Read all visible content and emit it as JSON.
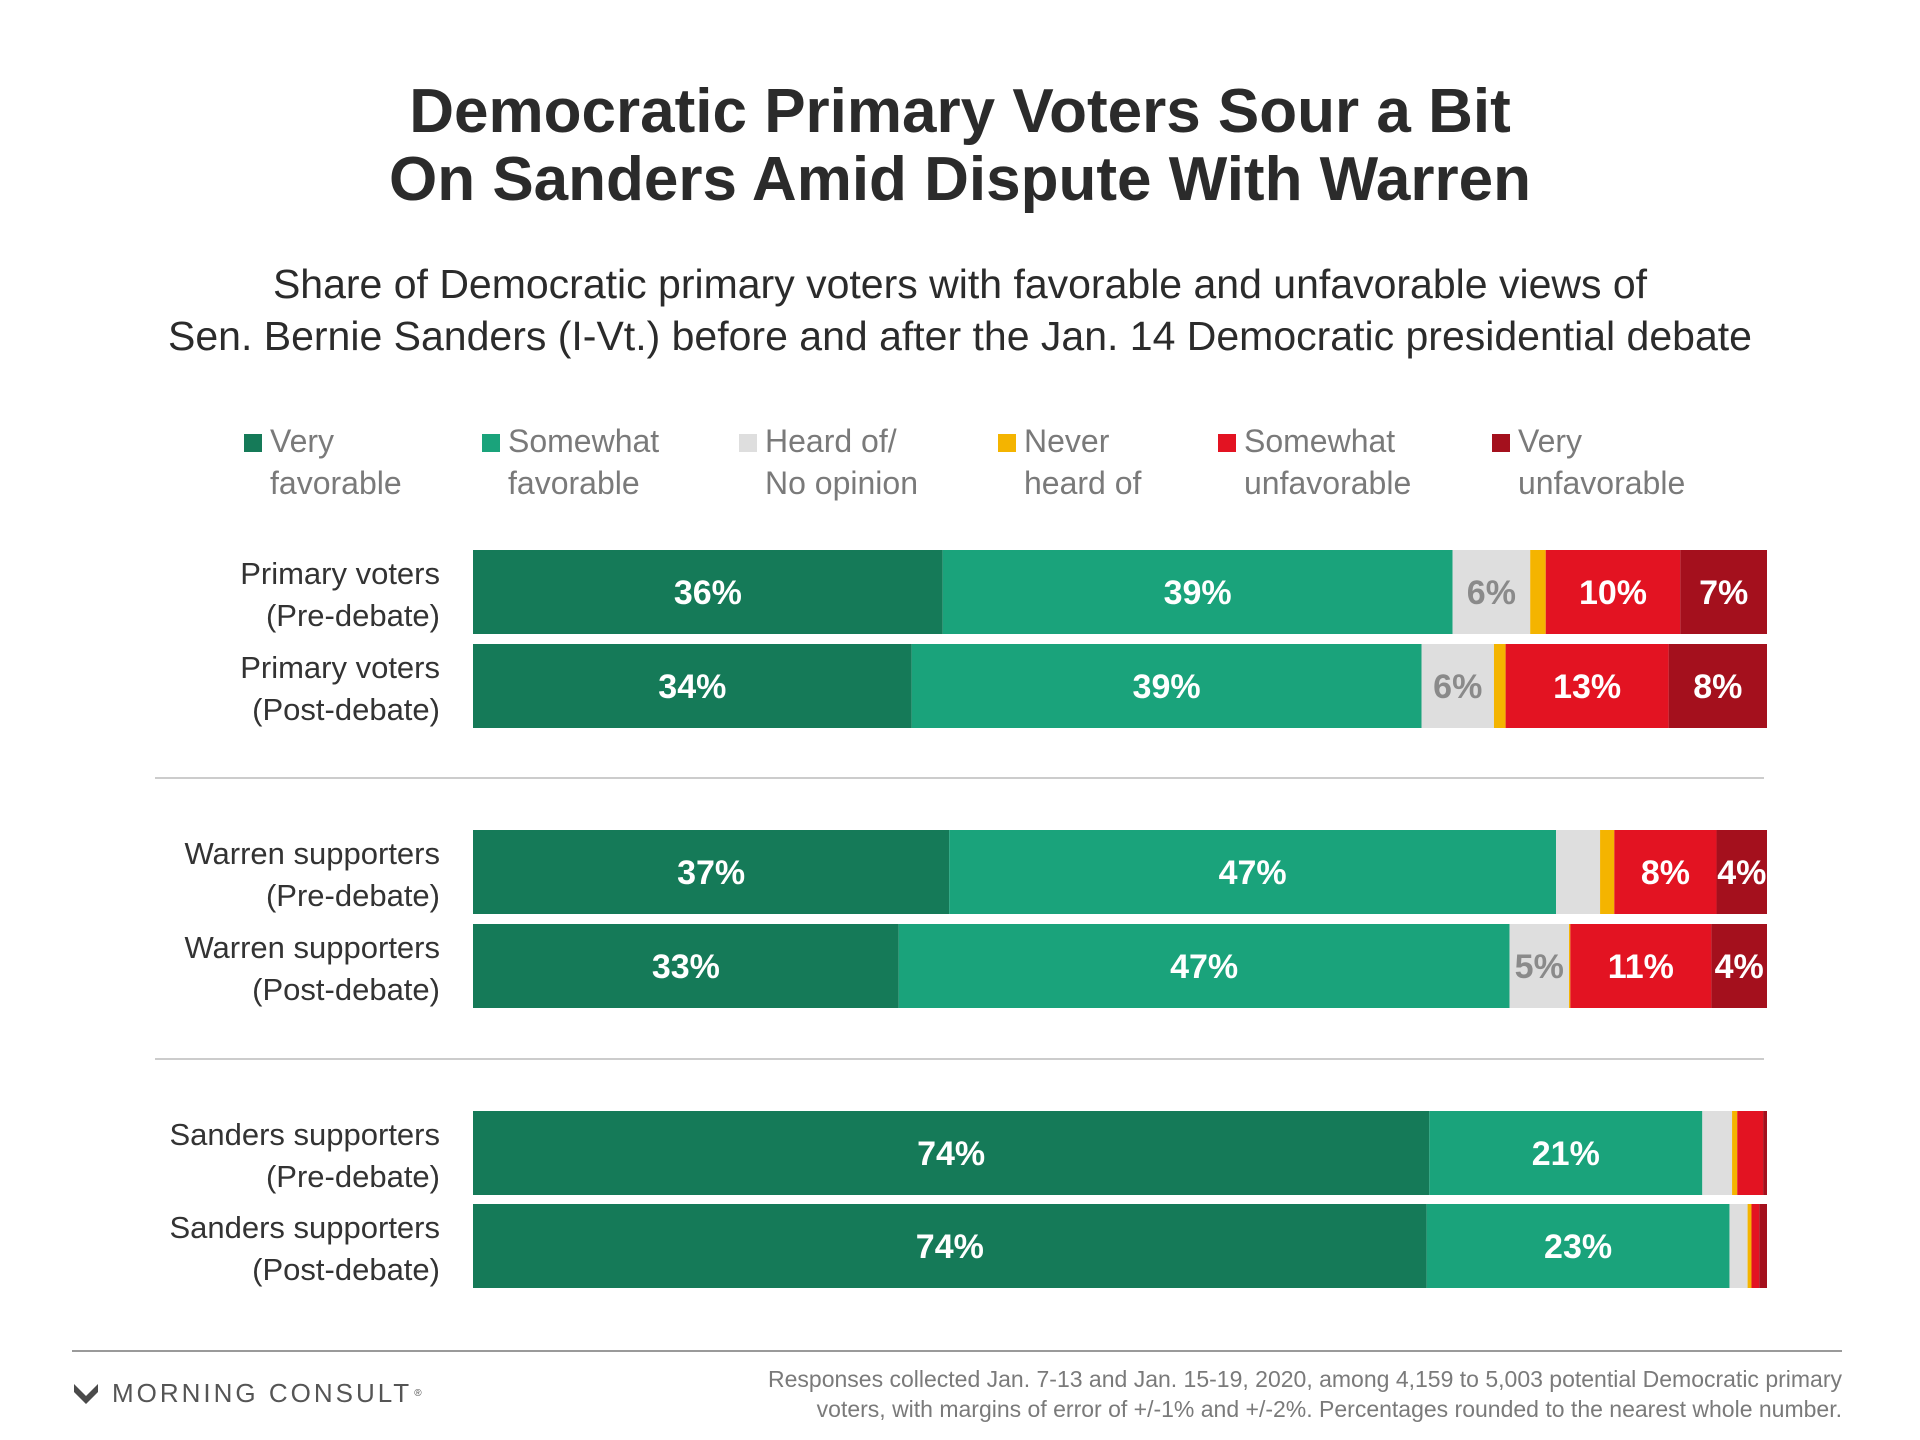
{
  "title": [
    "Democratic Primary Voters Sour a Bit",
    "On Sanders Amid Dispute With Warren"
  ],
  "subtitle": [
    "Share of Democratic primary voters with favorable and unfavorable views of",
    "Sen. Bernie Sanders (I-Vt.) before and after the Jan. 14 Democratic presidential debate"
  ],
  "legend": [
    {
      "lines": [
        "Very",
        "favorable"
      ],
      "color": "#157a58"
    },
    {
      "lines": [
        "Somewhat",
        "favorable"
      ],
      "color": "#1aa37b"
    },
    {
      "lines": [
        "Heard of/",
        "No opinion"
      ],
      "color": "#dedede"
    },
    {
      "lines": [
        "Never",
        "heard of"
      ],
      "color": "#f4b400"
    },
    {
      "lines": [
        "Somewhat",
        "unfavorable"
      ],
      "color": "#e31322"
    },
    {
      "lines": [
        "Very",
        "unfavorable"
      ],
      "color": "#a4101d"
    }
  ],
  "chart_data": {
    "type": "bar",
    "orientation": "horizontal",
    "stacked": true,
    "unit": "%",
    "categories": [
      [
        "Primary voters",
        "(Pre-debate)"
      ],
      [
        "Primary voters",
        "(Post-debate)"
      ],
      [
        "Warren supporters",
        "(Pre-debate)"
      ],
      [
        "Warren supporters",
        "(Post-debate)"
      ],
      [
        "Sanders supporters",
        "(Pre-debate)"
      ],
      [
        "Sanders supporters",
        "(Post-debate)"
      ]
    ],
    "groups": [
      [
        0,
        1
      ],
      [
        2,
        3
      ],
      [
        4,
        5
      ]
    ],
    "series": [
      {
        "name": "Very favorable",
        "color": "#157a58",
        "label_color": "#ffffff",
        "values": [
          36.3,
          33.9,
          36.8,
          32.9,
          73.9,
          73.7
        ],
        "labels": [
          "36%",
          "34%",
          "37%",
          "33%",
          "74%",
          "74%"
        ]
      },
      {
        "name": "Somewhat favorable",
        "color": "#1aa37b",
        "label_color": "#ffffff",
        "values": [
          39.4,
          39.4,
          46.9,
          47.2,
          21.1,
          23.4
        ],
        "labels": [
          "39%",
          "39%",
          "47%",
          "47%",
          "21%",
          "23%"
        ]
      },
      {
        "name": "Heard of/No opinion",
        "color": "#dedede",
        "label_color": "#8a8a8a",
        "values": [
          6.0,
          5.6,
          3.4,
          4.6,
          2.3,
          1.4
        ],
        "labels": [
          "6%",
          "6%",
          "",
          "5%",
          "",
          ""
        ]
      },
      {
        "name": "Never heard of",
        "color": "#f4b400",
        "label_color": "#ffffff",
        "values": [
          1.2,
          0.9,
          1.1,
          0.1,
          0.4,
          0.3
        ],
        "labels": [
          "",
          "",
          "",
          "",
          "",
          ""
        ]
      },
      {
        "name": "Somewhat unfavorable",
        "color": "#e31322",
        "label_color": "#ffffff",
        "values": [
          10.4,
          12.6,
          7.9,
          10.9,
          2.0,
          0.6
        ],
        "labels": [
          "10%",
          "13%",
          "8%",
          "11%",
          "",
          ""
        ]
      },
      {
        "name": "Very unfavorable",
        "color": "#a4101d",
        "label_color": "#ffffff",
        "values": [
          6.7,
          7.6,
          3.9,
          4.3,
          0.3,
          0.6
        ],
        "labels": [
          "7%",
          "8%",
          "4%",
          "4%",
          "",
          ""
        ]
      }
    ],
    "xlim": [
      0,
      100
    ],
    "grid": false,
    "legend_position": "top"
  },
  "footer": {
    "logo_text": "MORNING CONSULT",
    "logo_tm": "®",
    "note": [
      "Responses collected Jan. 7-13 and Jan. 15-19, 2020, among 4,159 to 5,003 potential Democratic primary",
      "voters, with margins of error of +/-1% and +/-2%. Percentages rounded to the nearest whole number."
    ]
  }
}
